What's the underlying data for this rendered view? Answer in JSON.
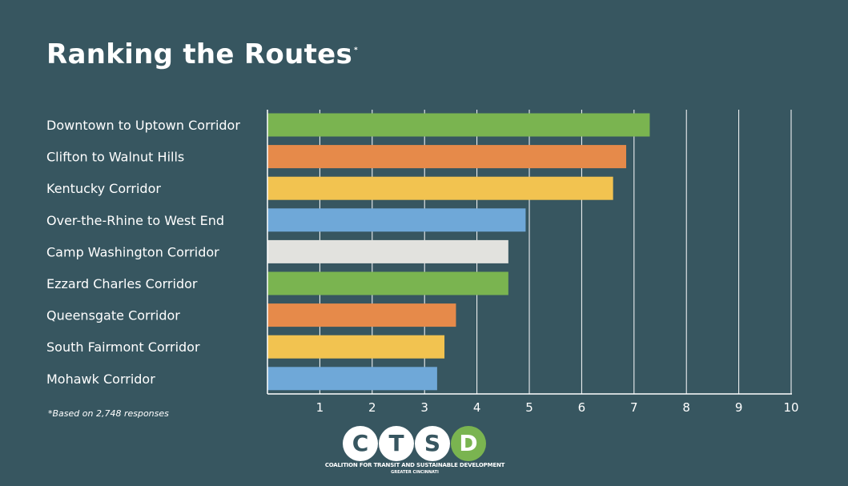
{
  "title": "Ranking the Routes",
  "title_marker": "*",
  "footnote": "*Based on 2,748 responses",
  "logo": {
    "letters": [
      "C",
      "T",
      "S",
      "D"
    ],
    "name": "COALITION FOR TRANSIT AND SUSTAINABLE DEVELOPMENT",
    "sub": "GREATER CINCINNATI"
  },
  "colors": {
    "background": "#375660",
    "green": "#7ab450",
    "orange": "#e68a4a",
    "yellow": "#f2c350",
    "blue": "#6fa8d8",
    "gray": "#e2e2de",
    "grid": "#ffffff"
  },
  "chart_data": {
    "type": "bar",
    "orientation": "horizontal",
    "title": "Ranking the Routes",
    "xlabel": "",
    "ylabel": "",
    "xlim": [
      0,
      10
    ],
    "ticks": [
      1,
      2,
      3,
      4,
      5,
      6,
      7,
      8,
      9,
      10
    ],
    "grid": true,
    "categories": [
      "Downtown to Uptown Corridor",
      "Clifton to Walnut Hills",
      "Kentucky Corridor",
      "Over-the-Rhine to West End",
      "Camp Washington Corridor",
      "Ezzard Charles Corridor",
      "Queensgate Corridor",
      "South Fairmont Corridor",
      "Mohawk Corridor"
    ],
    "values": [
      7.3,
      6.85,
      6.6,
      4.93,
      4.6,
      4.6,
      3.6,
      3.38,
      3.24
    ],
    "bar_colors": [
      "green",
      "orange",
      "yellow",
      "blue",
      "gray",
      "green",
      "orange",
      "yellow",
      "blue"
    ]
  }
}
